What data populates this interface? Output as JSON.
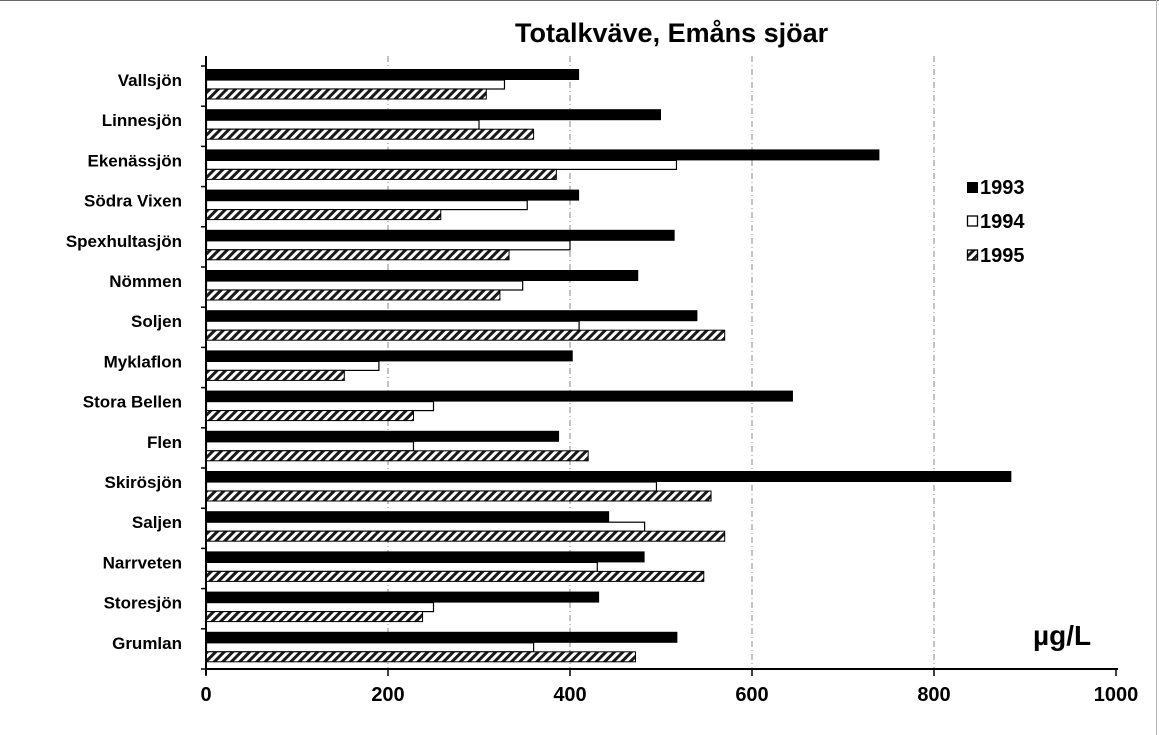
{
  "chart_data": {
    "type": "bar",
    "orientation": "horizontal",
    "title": "Totalkväve, Emåns sjöar",
    "unit_label": "µg/L",
    "categories": [
      "Vallsjön",
      "Linnesjön",
      "Ekenässjön",
      "Södra Vixen",
      "Spexhultasjön",
      "Nömmen",
      "Soljen",
      "Myklaflon",
      "Stora Bellen",
      "Flen",
      "Skirösjön",
      "Saljen",
      "Narrveten",
      "Storesjön",
      "Grumlan"
    ],
    "series": [
      {
        "name": "1993",
        "color": "#000000",
        "pattern": "solid",
        "values": [
          410,
          500,
          740,
          410,
          515,
          475,
          540,
          403,
          645,
          388,
          885,
          443,
          482,
          432,
          518
        ]
      },
      {
        "name": "1994",
        "color": "#ffffff",
        "pattern": "open",
        "values": [
          328,
          300,
          517,
          353,
          400,
          348,
          410,
          190,
          250,
          228,
          495,
          482,
          430,
          250,
          360
        ]
      },
      {
        "name": "1995",
        "color": "#777777",
        "pattern": "hatched",
        "values": [
          308,
          360,
          385,
          258,
          333,
          323,
          570,
          152,
          228,
          420,
          555,
          570,
          547,
          238,
          472
        ]
      }
    ],
    "xlim": [
      0,
      1000
    ],
    "xticks": [
      0,
      200,
      400,
      600,
      800,
      1000
    ],
    "grid": "vertical dash-dot lines",
    "legend_position": "right"
  }
}
